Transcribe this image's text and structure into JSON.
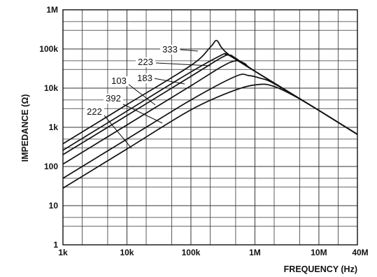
{
  "chart_data": {
    "type": "line",
    "title": "",
    "xlabel": "FREQUENCY (Hz)",
    "ylabel": "IMPEDANCE (Ω)",
    "x_scale": "log",
    "y_scale": "log",
    "xlim": [
      1000,
      40000000
    ],
    "ylim": [
      1,
      1000000
    ],
    "grid": true,
    "legend": "none (curves labeled directly)",
    "x_ticks": [
      {
        "value": 1000,
        "label": "1k"
      },
      {
        "value": 10000,
        "label": "10k"
      },
      {
        "value": 100000,
        "label": "100k"
      },
      {
        "value": 1000000,
        "label": "1M"
      },
      {
        "value": 10000000,
        "label": "10M"
      },
      {
        "value": 40000000,
        "label": "40M"
      }
    ],
    "y_ticks": [
      {
        "value": 1,
        "label": "1"
      },
      {
        "value": 10,
        "label": "10"
      },
      {
        "value": 100,
        "label": "100"
      },
      {
        "value": 1000,
        "label": "1k"
      },
      {
        "value": 10000,
        "label": "10k"
      },
      {
        "value": 100000,
        "label": "100k"
      },
      {
        "value": 1000000,
        "label": "1M"
      }
    ],
    "series": [
      {
        "name": "333",
        "points": [
          [
            1000,
            380
          ],
          [
            10000,
            3800
          ],
          [
            100000,
            38000
          ],
          [
            200000,
            110000
          ],
          [
            250000,
            165000
          ],
          [
            300000,
            110000
          ],
          [
            400000,
            70000
          ],
          [
            1000000,
            27000
          ],
          [
            10000000,
            2700
          ],
          [
            40000000,
            660
          ]
        ]
      },
      {
        "name": "223",
        "points": [
          [
            1000,
            260
          ],
          [
            10000,
            2600
          ],
          [
            100000,
            26000
          ],
          [
            300000,
            70000
          ],
          [
            350000,
            73000
          ],
          [
            400000,
            68000
          ],
          [
            1000000,
            27000
          ],
          [
            10000000,
            2700
          ],
          [
            40000000,
            660
          ]
        ]
      },
      {
        "name": "183",
        "points": [
          [
            1000,
            200
          ],
          [
            10000,
            2000
          ],
          [
            100000,
            20000
          ],
          [
            300000,
            60000
          ],
          [
            400000,
            70000
          ],
          [
            500000,
            58000
          ],
          [
            1000000,
            27000
          ],
          [
            10000000,
            2700
          ],
          [
            40000000,
            660
          ]
        ]
      },
      {
        "name": "103",
        "points": [
          [
            1000,
            115
          ],
          [
            10000,
            1150
          ],
          [
            100000,
            11500
          ],
          [
            300000,
            35000
          ],
          [
            500000,
            50000
          ],
          [
            700000,
            42000
          ],
          [
            1000000,
            27000
          ],
          [
            10000000,
            2700
          ],
          [
            40000000,
            660
          ]
        ]
      },
      {
        "name": "392",
        "points": [
          [
            1000,
            50
          ],
          [
            10000,
            500
          ],
          [
            100000,
            5000
          ],
          [
            500000,
            20000
          ],
          [
            800000,
            21000
          ],
          [
            1200000,
            18000
          ],
          [
            2000000,
            13000
          ],
          [
            10000000,
            2700
          ],
          [
            40000000,
            660
          ]
        ]
      },
      {
        "name": "222",
        "points": [
          [
            1000,
            28
          ],
          [
            10000,
            280
          ],
          [
            100000,
            2800
          ],
          [
            500000,
            9000
          ],
          [
            1200000,
            12500
          ],
          [
            2000000,
            11000
          ],
          [
            4000000,
            6500
          ],
          [
            10000000,
            2700
          ],
          [
            40000000,
            660
          ]
        ]
      }
    ],
    "labels": [
      {
        "text": "333",
        "x": 30000000,
        "y": 1000
      },
      {
        "text": "223",
        "x": 30000000,
        "y": 1000
      },
      {
        "text": "183",
        "x": 30000000,
        "y": 1000
      },
      {
        "text": "103",
        "x": 30000000,
        "y": 1000
      },
      {
        "text": "392",
        "x": 30000000,
        "y": 1000
      },
      {
        "text": "222",
        "x": 30000000,
        "y": 1000
      }
    ]
  }
}
